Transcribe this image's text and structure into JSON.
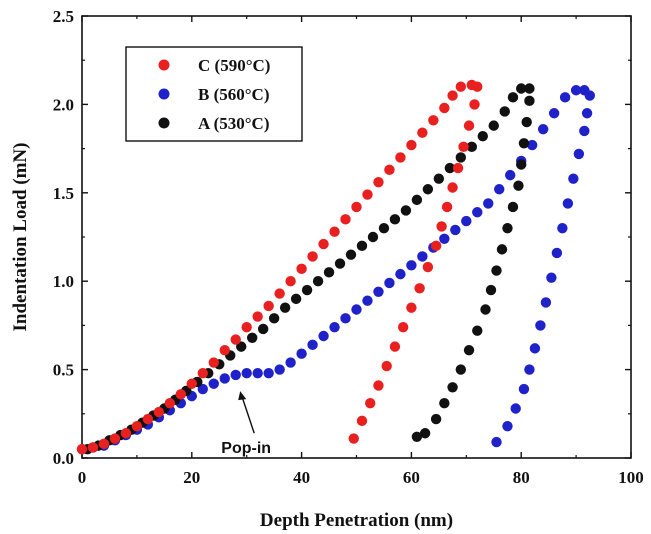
{
  "chart_data": {
    "type": "scatter",
    "title": "",
    "xlabel": "Depth Penetration (nm)",
    "ylabel": "Indentation Load (mN)",
    "xlim": [
      0,
      100
    ],
    "ylim": [
      0,
      2.5
    ],
    "xticks": [
      0,
      20,
      40,
      60,
      80,
      100
    ],
    "yticks": [
      0.0,
      0.5,
      1.0,
      1.5,
      2.0,
      2.5
    ],
    "xtick_labels": [
      "0",
      "20",
      "40",
      "60",
      "80",
      "100"
    ],
    "ytick_labels": [
      "0.0",
      "0.5",
      "1.0",
      "1.5",
      "2.0",
      "2.5"
    ],
    "grid": false,
    "legend_position": "top-left",
    "annotations": [
      {
        "text": "Pop-in",
        "x": 31,
        "y": 0.48
      }
    ],
    "series": [
      {
        "name": "C (590°C)",
        "color": "#e8201f",
        "loading": [
          [
            0,
            0.05
          ],
          [
            2,
            0.06
          ],
          [
            4,
            0.08
          ],
          [
            6,
            0.11
          ],
          [
            8,
            0.14
          ],
          [
            10,
            0.18
          ],
          [
            12,
            0.22
          ],
          [
            14,
            0.26
          ],
          [
            16,
            0.31
          ],
          [
            18,
            0.36
          ],
          [
            20,
            0.42
          ],
          [
            22,
            0.48
          ],
          [
            24,
            0.54
          ],
          [
            26,
            0.61
          ],
          [
            28,
            0.67
          ],
          [
            30,
            0.74
          ],
          [
            32,
            0.8
          ],
          [
            34,
            0.86
          ],
          [
            36,
            0.93
          ],
          [
            38,
            1.0
          ],
          [
            40,
            1.07
          ],
          [
            42,
            1.14
          ],
          [
            44,
            1.21
          ],
          [
            46,
            1.28
          ],
          [
            48,
            1.35
          ],
          [
            50,
            1.42
          ],
          [
            52,
            1.49
          ],
          [
            54,
            1.56
          ],
          [
            56,
            1.63
          ],
          [
            58,
            1.7
          ],
          [
            60,
            1.77
          ],
          [
            62,
            1.84
          ],
          [
            64,
            1.91
          ],
          [
            66,
            1.98
          ],
          [
            67.5,
            2.05
          ],
          [
            69,
            2.1
          ],
          [
            71,
            2.11
          ]
        ],
        "unloading": [
          [
            72,
            2.1
          ],
          [
            71.5,
            2.0
          ],
          [
            70.5,
            1.88
          ],
          [
            69.5,
            1.76
          ],
          [
            68.5,
            1.64
          ],
          [
            67.5,
            1.53
          ],
          [
            66.5,
            1.42
          ],
          [
            65.5,
            1.31
          ],
          [
            64.5,
            1.2
          ],
          [
            63,
            1.08
          ],
          [
            61.5,
            0.96
          ],
          [
            60,
            0.85
          ],
          [
            58.5,
            0.74
          ],
          [
            57,
            0.63
          ],
          [
            55.5,
            0.52
          ],
          [
            54,
            0.41
          ],
          [
            52.5,
            0.31
          ],
          [
            51,
            0.21
          ],
          [
            49.5,
            0.11
          ]
        ]
      },
      {
        "name": "B (560°C)",
        "color": "#1f22c8",
        "loading": [
          [
            0,
            0.05
          ],
          [
            2,
            0.06
          ],
          [
            4,
            0.07
          ],
          [
            6,
            0.1
          ],
          [
            8,
            0.13
          ],
          [
            10,
            0.16
          ],
          [
            12,
            0.19
          ],
          [
            14,
            0.23
          ],
          [
            16,
            0.27
          ],
          [
            18,
            0.31
          ],
          [
            20,
            0.35
          ],
          [
            22,
            0.39
          ],
          [
            24,
            0.42
          ],
          [
            26,
            0.45
          ],
          [
            28,
            0.47
          ],
          [
            30,
            0.48
          ],
          [
            32,
            0.48
          ],
          [
            34,
            0.48
          ],
          [
            36,
            0.5
          ],
          [
            38,
            0.54
          ],
          [
            40,
            0.59
          ],
          [
            42,
            0.64
          ],
          [
            44,
            0.69
          ],
          [
            46,
            0.74
          ],
          [
            48,
            0.79
          ],
          [
            50,
            0.84
          ],
          [
            52,
            0.89
          ],
          [
            54,
            0.94
          ],
          [
            56,
            0.99
          ],
          [
            58,
            1.04
          ],
          [
            60,
            1.09
          ],
          [
            62,
            1.14
          ],
          [
            64,
            1.19
          ],
          [
            66,
            1.24
          ],
          [
            68,
            1.29
          ],
          [
            70,
            1.34
          ],
          [
            72,
            1.39
          ],
          [
            74,
            1.44
          ],
          [
            76,
            1.52
          ],
          [
            78,
            1.6
          ],
          [
            80,
            1.68
          ],
          [
            82,
            1.77
          ],
          [
            84,
            1.86
          ],
          [
            86,
            1.95
          ],
          [
            88,
            2.04
          ],
          [
            90,
            2.08
          ],
          [
            91.5,
            2.08
          ]
        ],
        "unloading": [
          [
            92.5,
            2.05
          ],
          [
            92,
            1.95
          ],
          [
            91.5,
            1.85
          ],
          [
            90.5,
            1.72
          ],
          [
            89.5,
            1.58
          ],
          [
            88.5,
            1.44
          ],
          [
            87.5,
            1.3
          ],
          [
            86.5,
            1.16
          ],
          [
            85.5,
            1.02
          ],
          [
            84.5,
            0.88
          ],
          [
            83.5,
            0.75
          ],
          [
            82.5,
            0.62
          ],
          [
            81.5,
            0.5
          ],
          [
            80.5,
            0.39
          ],
          [
            79,
            0.28
          ],
          [
            77.5,
            0.18
          ],
          [
            75.5,
            0.09
          ]
        ]
      },
      {
        "name": "A (530°C)",
        "color": "#111111",
        "loading": [
          [
            1,
            0.05
          ],
          [
            3,
            0.07
          ],
          [
            5,
            0.1
          ],
          [
            7,
            0.13
          ],
          [
            9,
            0.16
          ],
          [
            11,
            0.2
          ],
          [
            13,
            0.24
          ],
          [
            15,
            0.28
          ],
          [
            17,
            0.33
          ],
          [
            19,
            0.38
          ],
          [
            21,
            0.43
          ],
          [
            23,
            0.48
          ],
          [
            25,
            0.53
          ],
          [
            27,
            0.58
          ],
          [
            29,
            0.63
          ],
          [
            31,
            0.68
          ],
          [
            33,
            0.73
          ],
          [
            35,
            0.79
          ],
          [
            37,
            0.85
          ],
          [
            39,
            0.9
          ],
          [
            41,
            0.95
          ],
          [
            43,
            1.0
          ],
          [
            45,
            1.05
          ],
          [
            47,
            1.1
          ],
          [
            49,
            1.15
          ],
          [
            51,
            1.2
          ],
          [
            53,
            1.25
          ],
          [
            55,
            1.3
          ],
          [
            57,
            1.35
          ],
          [
            59,
            1.4
          ],
          [
            61,
            1.46
          ],
          [
            63,
            1.52
          ],
          [
            65,
            1.58
          ],
          [
            67,
            1.64
          ],
          [
            69,
            1.7
          ],
          [
            71,
            1.76
          ],
          [
            73,
            1.82
          ],
          [
            75,
            1.88
          ],
          [
            77,
            1.96
          ],
          [
            78.5,
            2.04
          ],
          [
            80,
            2.09
          ],
          [
            81.5,
            2.09
          ]
        ],
        "unloading": [
          [
            81.5,
            2.02
          ],
          [
            81,
            1.9
          ],
          [
            80.5,
            1.78
          ],
          [
            80,
            1.66
          ],
          [
            79.5,
            1.54
          ],
          [
            78.5,
            1.42
          ],
          [
            77.5,
            1.3
          ],
          [
            76.5,
            1.18
          ],
          [
            75.5,
            1.06
          ],
          [
            74.5,
            0.95
          ],
          [
            73.5,
            0.84
          ],
          [
            72,
            0.72
          ],
          [
            70.5,
            0.61
          ],
          [
            69,
            0.5
          ],
          [
            67.5,
            0.4
          ],
          [
            66,
            0.31
          ],
          [
            64.5,
            0.22
          ],
          [
            62.5,
            0.14
          ],
          [
            61,
            0.12
          ]
        ]
      }
    ]
  }
}
